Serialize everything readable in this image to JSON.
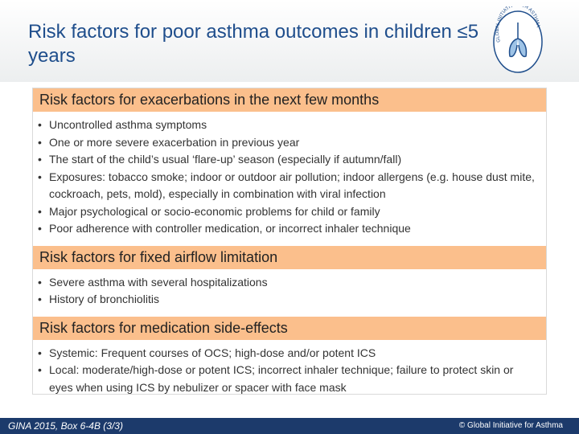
{
  "title": "Risk factors for poor asthma outcomes in children ≤5 years",
  "logo": "GLOBAL INITIATIVE FOR ASTHMA",
  "sections": [
    {
      "heading": "Risk factors for exacerbations in the next few months",
      "items": [
        "Uncontrolled asthma symptoms",
        "One or more severe exacerbation in previous year",
        "The start of the child’s usual ‘flare-up’ season (especially if autumn/fall)",
        "Exposures: tobacco smoke; indoor or outdoor air pollution; indoor allergens (e.g. house dust mite, cockroach, pets, mold), especially in combination with viral infection",
        "Major psychological or socio-economic problems for child or family",
        "Poor adherence with controller medication, or incorrect inhaler technique"
      ]
    },
    {
      "heading": "Risk factors for fixed airflow limitation",
      "items": [
        "Severe asthma with several hospitalizations",
        "History of bronchiolitis"
      ]
    },
    {
      "heading": "Risk factors for medication side-effects",
      "items": [
        "Systemic: Frequent courses of OCS; high-dose and/or potent ICS",
        "Local: moderate/high-dose or potent ICS; incorrect inhaler technique; failure to protect skin or eyes when using ICS by nebulizer or spacer with face mask"
      ]
    }
  ],
  "footer": {
    "source": "GINA 2015, Box 6-4B (3/3)",
    "copyright": "© Global Initiative for Asthma"
  }
}
